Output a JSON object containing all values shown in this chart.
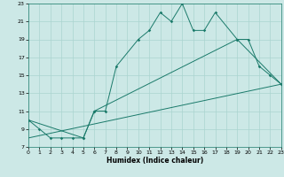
{
  "xlabel": "Humidex (Indice chaleur)",
  "bg_color": "#cce8e6",
  "grid_color": "#aad4d0",
  "line_color": "#1a7a6a",
  "line1_x": [
    0,
    1,
    2,
    3,
    4,
    5,
    6,
    7,
    8,
    10,
    11,
    12,
    13,
    14,
    15,
    16,
    17,
    19,
    20,
    21,
    22,
    23
  ],
  "line1_y": [
    10,
    9,
    8,
    8,
    8,
    8,
    11,
    11,
    16,
    19,
    20,
    22,
    21,
    23,
    20,
    20,
    22,
    19,
    19,
    16,
    15,
    14
  ],
  "line2_x": [
    0,
    5,
    6,
    19,
    23
  ],
  "line2_y": [
    10,
    8,
    11,
    19,
    14
  ],
  "line3_x": [
    0,
    23
  ],
  "line3_y": [
    8,
    14
  ],
  "xmin": 0,
  "xmax": 23,
  "ymin": 7,
  "ymax": 23,
  "yticks": [
    7,
    9,
    11,
    13,
    15,
    17,
    19,
    21,
    23
  ],
  "xticks": [
    0,
    1,
    2,
    3,
    4,
    5,
    6,
    7,
    8,
    9,
    10,
    11,
    12,
    13,
    14,
    15,
    16,
    17,
    18,
    19,
    20,
    21,
    22,
    23
  ]
}
